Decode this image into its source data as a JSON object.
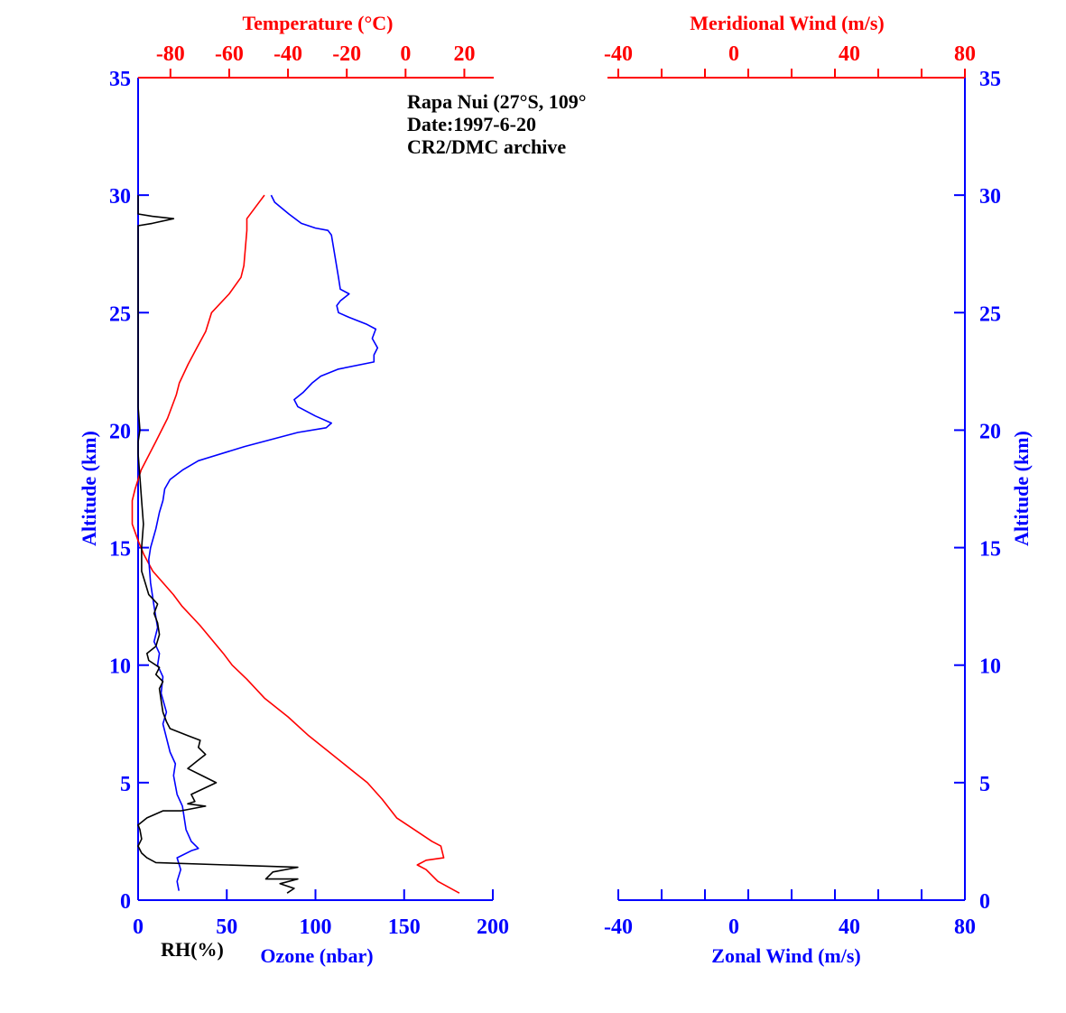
{
  "chart_data": {
    "type": "line",
    "annotation": [
      "Rapa Nui (27°S, 109°",
      "Date:1997-6-20",
      "CR2/DMC archive"
    ],
    "colors": {
      "altitude": "#0000ff",
      "temperature": "#ff0000",
      "ozone": "#0000ff",
      "rh": "#000000",
      "wind_axes": "#0000ff",
      "meridional": "#ff0000"
    },
    "left_panel": {
      "ylabel": "Altitude (km)",
      "ylim": [
        0,
        35
      ],
      "yticks": [
        "0",
        "5",
        "10",
        "15",
        "20",
        "25",
        "30",
        "35"
      ],
      "top_axis": {
        "label": "Temperature (°C)",
        "lim": [
          -91,
          30
        ],
        "ticks": [
          "-80",
          "-60",
          "-40",
          "-20",
          "0",
          "20"
        ]
      },
      "bottom_axis": {
        "label": "Ozone (nbar)",
        "lim": [
          0,
          200
        ],
        "ticks": [
          "0",
          "50",
          "100",
          "150",
          "200"
        ]
      },
      "rh_label": "RH(%)",
      "series": [
        {
          "axis": "top",
          "points": [
            [
              18.3,
              0.3
            ],
            [
              11,
              0.8
            ],
            [
              7,
              1.3
            ],
            [
              4,
              1.5
            ],
            [
              7,
              1.7
            ],
            [
              13,
              1.8
            ],
            [
              12,
              2.3
            ],
            [
              9,
              2.5
            ],
            [
              3,
              3
            ],
            [
              -3,
              3.5
            ],
            [
              -8,
              4.3
            ],
            [
              -13,
              5
            ],
            [
              -19,
              5.6
            ],
            [
              -26,
              6.3
            ],
            [
              -33,
              7
            ],
            [
              -40,
              7.8
            ],
            [
              -48,
              8.6
            ],
            [
              -54,
              9.4
            ],
            [
              -59,
              10
            ],
            [
              -62,
              10.5
            ],
            [
              -70,
              11.7
            ],
            [
              -76,
              12.5
            ],
            [
              -79,
              13
            ],
            [
              -86,
              14
            ],
            [
              -89,
              14.7
            ],
            [
              -91,
              15.3
            ],
            [
              -93,
              16
            ],
            [
              -93,
              17
            ],
            [
              -92,
              17.5
            ],
            [
              -90,
              18.3
            ],
            [
              -85,
              19.5
            ],
            [
              -81,
              20.5
            ],
            [
              -78,
              21.5
            ],
            [
              -77,
              22
            ],
            [
              -74,
              22.8
            ],
            [
              -71,
              23.5
            ],
            [
              -68,
              24.2
            ],
            [
              -66,
              25
            ],
            [
              -60,
              25.8
            ],
            [
              -56,
              26.5
            ],
            [
              -55,
              27
            ],
            [
              -54,
              28.5
            ],
            [
              -54,
              29
            ],
            [
              -51,
              29.5
            ],
            [
              -48,
              30
            ]
          ]
        },
        {
          "axis": "bottom",
          "points": [
            [
              23,
              0.4
            ],
            [
              22,
              0.8
            ],
            [
              24,
              1.3
            ],
            [
              22,
              1.8
            ],
            [
              30,
              2.1
            ],
            [
              34,
              2.2
            ],
            [
              30,
              2.5
            ],
            [
              27,
              3
            ],
            [
              26,
              3.5
            ],
            [
              25,
              4
            ],
            [
              22,
              4.5
            ],
            [
              20,
              5.3
            ],
            [
              21,
              5.8
            ],
            [
              18,
              6.3
            ],
            [
              14,
              7.5
            ],
            [
              16,
              8
            ],
            [
              13,
              8.8
            ],
            [
              14,
              9.5
            ],
            [
              11,
              10
            ],
            [
              12,
              10.5
            ],
            [
              9,
              11
            ],
            [
              11,
              11.6
            ],
            [
              9,
              12.5
            ],
            [
              7,
              13.5
            ],
            [
              6,
              14.5
            ],
            [
              7,
              15
            ],
            [
              10,
              15.8
            ],
            [
              12,
              16.5
            ],
            [
              14,
              17
            ],
            [
              15,
              17.5
            ],
            [
              18,
              17.9
            ],
            [
              25,
              18.3
            ],
            [
              34,
              18.7
            ],
            [
              60,
              19.3
            ],
            [
              90,
              19.9
            ],
            [
              106,
              20.1
            ],
            [
              109,
              20.3
            ],
            [
              100,
              20.6
            ],
            [
              90,
              21
            ],
            [
              88,
              21.3
            ],
            [
              93,
              21.6
            ],
            [
              98,
              22
            ],
            [
              103,
              22.3
            ],
            [
              113,
              22.6
            ],
            [
              133,
              22.9
            ],
            [
              133,
              23.2
            ],
            [
              135,
              23.5
            ],
            [
              132,
              23.9
            ],
            [
              134,
              24.3
            ],
            [
              129,
              24.5
            ],
            [
              119,
              24.8
            ],
            [
              113,
              25
            ],
            [
              112,
              25.3
            ],
            [
              114,
              25.5
            ],
            [
              119,
              25.8
            ],
            [
              114,
              26
            ],
            [
              113,
              26.5
            ],
            [
              109,
              28.3
            ],
            [
              107,
              28.5
            ],
            [
              100,
              28.6
            ],
            [
              92,
              28.8
            ],
            [
              85,
              29.2
            ],
            [
              77,
              29.7
            ],
            [
              75,
              30
            ]
          ]
        },
        {
          "axis": "rh",
          "points": [
            [
              84,
              0.3
            ],
            [
              88,
              0.5
            ],
            [
              80,
              0.7
            ],
            [
              90,
              0.9
            ],
            [
              72,
              0.9
            ],
            [
              76,
              1.2
            ],
            [
              90,
              1.4
            ],
            [
              10,
              1.6
            ],
            [
              5,
              1.8
            ],
            [
              2,
              2
            ],
            [
              0,
              2.3
            ],
            [
              2,
              2.6
            ],
            [
              1,
              3
            ],
            [
              0,
              3.2
            ],
            [
              5,
              3.5
            ],
            [
              14,
              3.8
            ],
            [
              24,
              3.8
            ],
            [
              38,
              4.0
            ],
            [
              28,
              4.1
            ],
            [
              32,
              4.2
            ],
            [
              30,
              4.5
            ],
            [
              44,
              5.0
            ],
            [
              36,
              5.3
            ],
            [
              28,
              5.6
            ],
            [
              33,
              5.9
            ],
            [
              38,
              6.2
            ],
            [
              34,
              6.5
            ],
            [
              35,
              6.8
            ],
            [
              28,
              7
            ],
            [
              18,
              7.3
            ],
            [
              16,
              7.6
            ],
            [
              14,
              8
            ],
            [
              13,
              8.5
            ],
            [
              12,
              9
            ],
            [
              14,
              9.3
            ],
            [
              10,
              9.6
            ],
            [
              12,
              9.9
            ],
            [
              6,
              10.2
            ],
            [
              5,
              10.5
            ],
            [
              10,
              10.8
            ],
            [
              12,
              11.3
            ],
            [
              11,
              11.8
            ],
            [
              9,
              12.2
            ],
            [
              11,
              12.6
            ],
            [
              6,
              13
            ],
            [
              4,
              13.5
            ],
            [
              2,
              14
            ],
            [
              2,
              15
            ],
            [
              3,
              16
            ],
            [
              2,
              17
            ],
            [
              1,
              18
            ],
            [
              0,
              19
            ],
            [
              0,
              19.5
            ],
            [
              1,
              20
            ],
            [
              0,
              21
            ],
            [
              0,
              28.6
            ],
            [
              0,
              28.7
            ],
            [
              8,
              28.8
            ],
            [
              20,
              29
            ],
            [
              8,
              29.1
            ],
            [
              0,
              29.2
            ],
            [
              0,
              30
            ]
          ]
        }
      ]
    },
    "right_panel": {
      "ylabel": "Altitude (km)",
      "ylim": [
        0,
        35
      ],
      "yticks": [
        "0",
        "5",
        "10",
        "15",
        "20",
        "25",
        "30",
        "35"
      ],
      "top_axis": {
        "label": "Meridional Wind (m/s)",
        "lim": [
          -40,
          80
        ],
        "ticks": [
          "-40",
          "0",
          "40",
          "80"
        ]
      },
      "bottom_axis": {
        "label": "Zonal Wind (m/s)",
        "lim": [
          -40,
          80
        ],
        "ticks": [
          "-40",
          "0",
          "40",
          "80"
        ]
      },
      "series": []
    }
  }
}
